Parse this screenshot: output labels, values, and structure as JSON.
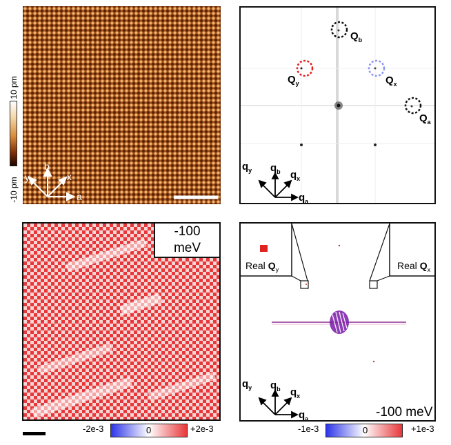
{
  "colorbar_topo": {
    "top": "10 pm",
    "bottom": "-10 pm"
  },
  "panel_a_axes": {
    "b": "b",
    "x": "x",
    "y": "y",
    "a": "a"
  },
  "panel_b_peaks": {
    "Qb": "Q",
    "Qb_sub": "b",
    "Qy": "Q",
    "Qy_sub": "y",
    "Qx": "Q",
    "Qx_sub": "x",
    "Qa": "Q",
    "Qa_sub": "a"
  },
  "q_axes": {
    "qy": "q",
    "qy_sub": "y",
    "qb": "q",
    "qb_sub": "b",
    "qx": "q",
    "qx_sub": "x",
    "qa": "q",
    "qa_sub": "a"
  },
  "panel_c": {
    "energy": "-100 meV"
  },
  "colorbar_c": {
    "min": "-2e-3",
    "mid": "0",
    "max": "+2e-3"
  },
  "panel_d": {
    "energy": "-100 meV",
    "inset_left": {
      "prefix": "Real ",
      "q": "Q",
      "sub": "y"
    },
    "inset_right": {
      "prefix": "Real ",
      "q": "Q",
      "sub": "x"
    }
  },
  "colorbar_d": {
    "min": "-1e-3",
    "mid": "0",
    "max": "+1e-3"
  },
  "colors": {
    "afm_brown": "#a24f16",
    "red": "#e8373a",
    "blue": "#2d35e8",
    "ring_red": "#e0231f",
    "ring_blue": "#8d96f2",
    "purple": "#7a1aa8"
  }
}
